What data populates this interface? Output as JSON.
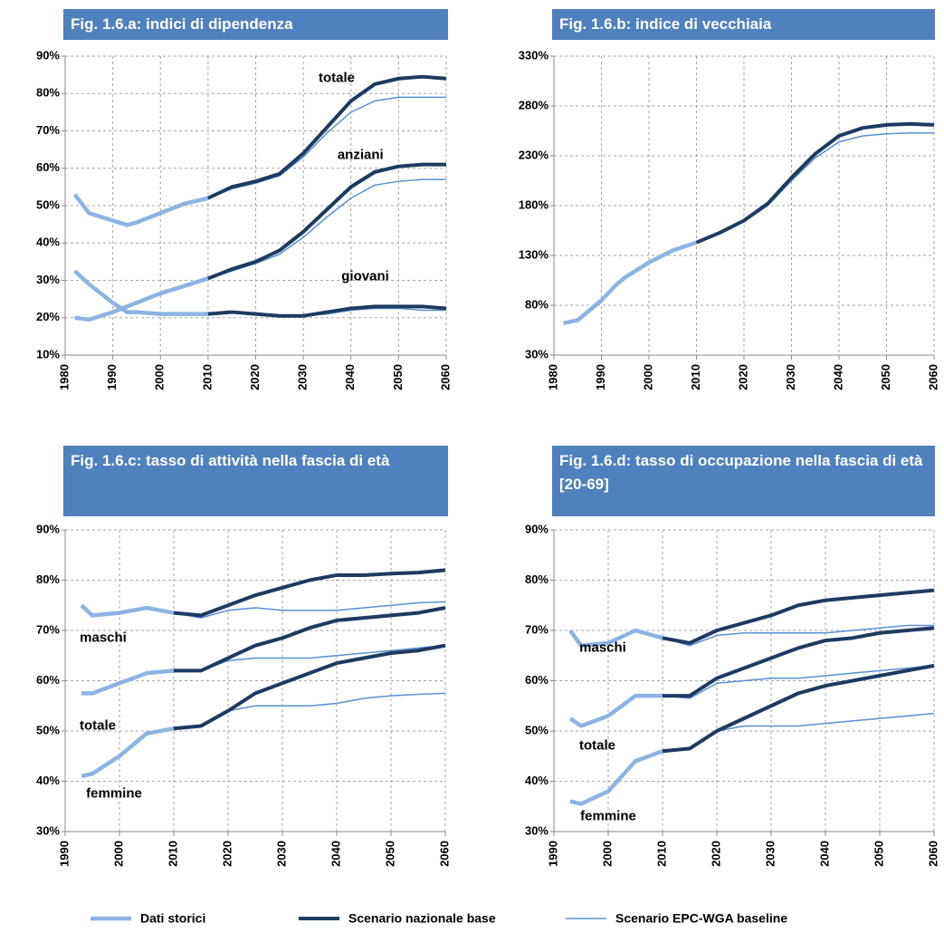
{
  "legend": [
    {
      "name": "Dati storici",
      "color": "#8db3e2",
      "line_width": 4.5
    },
    {
      "name": "Scenario nazionale base",
      "color": "#1f3a60",
      "line_width": 4
    },
    {
      "name": "Scenario EPC-WGA baseline",
      "color": "#5b8fd0",
      "line_width": 1.5
    }
  ],
  "chart_data": [
    {
      "type": "line",
      "title": "Fig. 1.6.a: indici di dipendenza",
      "x": [
        1982,
        1985,
        1990,
        1993,
        1995,
        2000,
        2005,
        2010,
        2015,
        2020,
        2025,
        2030,
        2035,
        2040,
        2045,
        2050,
        2055,
        2060
      ],
      "xlim": [
        1980,
        2060
      ],
      "xticks": [
        1980,
        1990,
        2000,
        2010,
        2020,
        2030,
        2040,
        2050,
        2060
      ],
      "ylim": [
        10,
        90
      ],
      "yticks": [
        {
          "value": 10,
          "label": "10%"
        },
        {
          "value": 20,
          "label": "20%"
        },
        {
          "value": 30,
          "label": "30%"
        },
        {
          "value": 40,
          "label": "40%"
        },
        {
          "value": 50,
          "label": "50%"
        },
        {
          "value": 60,
          "label": "60%"
        },
        {
          "value": 70,
          "label": "70%"
        },
        {
          "value": 80,
          "label": "80%"
        },
        {
          "value": 90,
          "label": "90%"
        }
      ],
      "grid": true,
      "groups": [
        {
          "label": "totale",
          "lines": [
            [
              53,
              48,
              46,
              44.8,
              45.5,
              48,
              50.5,
              52,
              null,
              null,
              null,
              null,
              null,
              null,
              null,
              null,
              null,
              null
            ],
            [
              null,
              null,
              null,
              null,
              null,
              null,
              null,
              52,
              55,
              56.5,
              58.5,
              64,
              71,
              78,
              82.5,
              84,
              84.5,
              84
            ],
            [
              null,
              null,
              null,
              null,
              null,
              null,
              null,
              52,
              54.5,
              56,
              58,
              63,
              69.5,
              75,
              78,
              79,
              79,
              79
            ]
          ]
        },
        {
          "label": "anziani",
          "lines": [
            [
              20,
              19.5,
              21.5,
              23,
              24,
              26.5,
              28.5,
              30.5,
              null,
              null,
              null,
              null,
              null,
              null,
              null,
              null,
              null,
              null
            ],
            [
              null,
              null,
              null,
              null,
              null,
              null,
              null,
              30.5,
              33,
              35,
              38,
              43,
              49,
              55,
              59,
              60.5,
              61,
              61
            ],
            [
              null,
              null,
              null,
              null,
              null,
              null,
              null,
              30.5,
              32.5,
              34.5,
              37,
              41.5,
              47,
              52,
              55.5,
              56.5,
              57,
              57
            ]
          ]
        },
        {
          "label": "giovani",
          "lines": [
            [
              32.5,
              29,
              24,
              21.5,
              21.5,
              21,
              21,
              21,
              null,
              null,
              null,
              null,
              null,
              null,
              null,
              null,
              null,
              null
            ],
            [
              null,
              null,
              null,
              null,
              null,
              null,
              null,
              21,
              21.5,
              21,
              20.5,
              20.5,
              21.5,
              22.5,
              23,
              23,
              23,
              22.5
            ],
            [
              null,
              null,
              null,
              null,
              null,
              null,
              null,
              21,
              21.5,
              21,
              20.5,
              20.5,
              21,
              22,
              22.5,
              22.5,
              22,
              22
            ]
          ]
        }
      ]
    },
    {
      "type": "line",
      "title": "Fig. 1.6.b: indice di vecchiaia",
      "x": [
        1982,
        1985,
        1990,
        1993,
        1995,
        2000,
        2005,
        2010,
        2015,
        2020,
        2025,
        2030,
        2035,
        2040,
        2045,
        2050,
        2055,
        2060
      ],
      "xlim": [
        1980,
        2060
      ],
      "xticks": [
        1980,
        1990,
        2000,
        2010,
        2020,
        2030,
        2040,
        2050,
        2060
      ],
      "ylim": [
        30,
        330
      ],
      "yticks": [
        {
          "value": 30,
          "label": "30%"
        },
        {
          "value": 80,
          "label": "80%"
        },
        {
          "value": 130,
          "label": "130%"
        },
        {
          "value": 180,
          "label": "180%"
        },
        {
          "value": 230,
          "label": "230%"
        },
        {
          "value": 280,
          "label": "280%"
        },
        {
          "value": 330,
          "label": "330%"
        }
      ],
      "grid": true,
      "groups": [
        {
          "lines": [
            [
              62,
              65,
              85,
              100,
              108,
              123,
              135,
              143,
              null,
              null,
              null,
              null,
              null,
              null,
              null,
              null,
              null,
              null
            ],
            [
              null,
              null,
              null,
              null,
              null,
              null,
              null,
              143,
              153,
              165,
              182,
              208,
              232,
              250,
              258,
              261,
              262,
              261
            ],
            [
              null,
              null,
              null,
              null,
              null,
              null,
              null,
              143,
              152,
              164,
              180,
              205,
              228,
              244,
              250,
              252,
              253,
              253
            ]
          ]
        }
      ]
    },
    {
      "type": "line",
      "title": "Fig. 1.6.c: tasso di attività nella fascia di età",
      "x": [
        1993,
        1995,
        2000,
        2005,
        2010,
        2015,
        2020,
        2025,
        2030,
        2035,
        2040,
        2045,
        2050,
        2055,
        2060
      ],
      "xlim": [
        1990,
        2060
      ],
      "xticks": [
        1990,
        2000,
        2010,
        2020,
        2030,
        2040,
        2050,
        2060
      ],
      "ylim": [
        30,
        90
      ],
      "yticks": [
        {
          "value": 30,
          "label": "30%"
        },
        {
          "value": 40,
          "label": "40%"
        },
        {
          "value": 50,
          "label": "50%"
        },
        {
          "value": 60,
          "label": "60%"
        },
        {
          "value": 70,
          "label": "70%"
        },
        {
          "value": 80,
          "label": "80%"
        },
        {
          "value": 90,
          "label": "90%"
        }
      ],
      "grid": true,
      "groups": [
        {
          "label": "maschi",
          "lines": [
            [
              75,
              73,
              73.5,
              74.5,
              73.5,
              null,
              null,
              null,
              null,
              null,
              null,
              null,
              null,
              null,
              null
            ],
            [
              null,
              null,
              null,
              null,
              73.5,
              73,
              75,
              77,
              78.5,
              80,
              81,
              81,
              81.3,
              81.5,
              82
            ],
            [
              null,
              null,
              null,
              null,
              73.5,
              72.5,
              74,
              74.5,
              74,
              74,
              74,
              74.5,
              75,
              75.5,
              75.7
            ]
          ]
        },
        {
          "label": "totale",
          "lines": [
            [
              57.5,
              57.5,
              59.5,
              61.5,
              62,
              null,
              null,
              null,
              null,
              null,
              null,
              null,
              null,
              null,
              null
            ],
            [
              null,
              null,
              null,
              null,
              62,
              62,
              64.5,
              67,
              68.5,
              70.5,
              72,
              72.5,
              73,
              73.5,
              74.5
            ],
            [
              null,
              null,
              null,
              null,
              62,
              62,
              64,
              64.5,
              64.5,
              64.5,
              65,
              65.5,
              66,
              66.5,
              67
            ]
          ]
        },
        {
          "label": "femmine",
          "lines": [
            [
              41,
              41.5,
              45,
              49.5,
              50.5,
              null,
              null,
              null,
              null,
              null,
              null,
              null,
              null,
              null,
              null
            ],
            [
              null,
              null,
              null,
              null,
              50.5,
              51,
              54,
              57.5,
              59.5,
              61.5,
              63.5,
              64.5,
              65.5,
              66,
              67
            ],
            [
              null,
              null,
              null,
              null,
              50.5,
              51,
              54,
              55,
              55,
              55,
              55.5,
              56.5,
              57,
              57.3,
              57.5
            ]
          ]
        }
      ]
    },
    {
      "type": "line",
      "title": "Fig. 1.6.d: tasso di occupazione nella fascia di età [20-69]",
      "x": [
        1993,
        1995,
        2000,
        2005,
        2010,
        2015,
        2020,
        2025,
        2030,
        2035,
        2040,
        2045,
        2050,
        2055,
        2060
      ],
      "xlim": [
        1990,
        2060
      ],
      "xticks": [
        1990,
        2000,
        2010,
        2020,
        2030,
        2040,
        2050,
        2060
      ],
      "ylim": [
        30,
        90
      ],
      "yticks": [
        {
          "value": 30,
          "label": "30%"
        },
        {
          "value": 40,
          "label": "40%"
        },
        {
          "value": 50,
          "label": "50%"
        },
        {
          "value": 60,
          "label": "60%"
        },
        {
          "value": 70,
          "label": "70%"
        },
        {
          "value": 80,
          "label": "80%"
        },
        {
          "value": 90,
          "label": "90%"
        }
      ],
      "grid": true,
      "groups": [
        {
          "label": "maschi",
          "lines": [
            [
              70,
              67,
              67.5,
              70,
              68.5,
              null,
              null,
              null,
              null,
              null,
              null,
              null,
              null,
              null,
              null
            ],
            [
              null,
              null,
              null,
              null,
              68.5,
              67.5,
              70,
              71.5,
              73,
              75,
              76,
              76.5,
              77,
              77.5,
              78
            ],
            [
              null,
              null,
              null,
              null,
              68.5,
              67,
              69,
              69.5,
              69.5,
              69.5,
              69.5,
              70,
              70.5,
              71,
              71
            ]
          ]
        },
        {
          "label": "totale",
          "lines": [
            [
              52.5,
              51,
              53,
              57,
              57,
              null,
              null,
              null,
              null,
              null,
              null,
              null,
              null,
              null,
              null
            ],
            [
              null,
              null,
              null,
              null,
              57,
              57,
              60.5,
              62.5,
              64.5,
              66.5,
              68,
              68.5,
              69.5,
              70,
              70.5
            ],
            [
              null,
              null,
              null,
              null,
              57,
              56.5,
              59.5,
              60,
              60.5,
              60.5,
              61,
              61.5,
              62,
              62.5,
              63
            ]
          ]
        },
        {
          "label": "femmine",
          "lines": [
            [
              36,
              35.5,
              38,
              44,
              46,
              null,
              null,
              null,
              null,
              null,
              null,
              null,
              null,
              null,
              null
            ],
            [
              null,
              null,
              null,
              null,
              46,
              46.5,
              50,
              52.5,
              55,
              57.5,
              59,
              60,
              61,
              62,
              63
            ],
            [
              null,
              null,
              null,
              null,
              46,
              46.5,
              50,
              51,
              51,
              51,
              51.5,
              52,
              52.5,
              53,
              53.5
            ]
          ]
        }
      ]
    }
  ]
}
